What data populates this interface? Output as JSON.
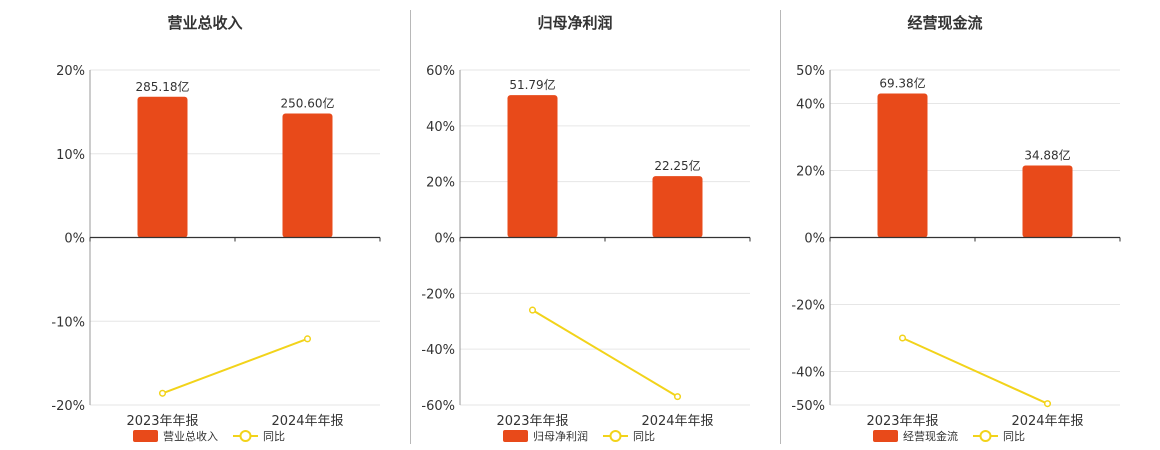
{
  "colors": {
    "bar": "#e84a1a",
    "line": "#f2d31a",
    "axis": "#333333",
    "grid": "#e6e6e6",
    "text": "#333333"
  },
  "chart_data": [
    {
      "type": "bar",
      "title": "营业总收入",
      "categories": [
        "2023年年报",
        "2024年年报"
      ],
      "series": [
        {
          "name": "营业总收入",
          "type": "bar",
          "values": [
            16.8,
            14.8
          ],
          "labels": [
            "285.18亿",
            "250.60亿"
          ]
        },
        {
          "name": "同比",
          "type": "line",
          "values": [
            -18.6,
            -12.1
          ]
        }
      ],
      "ylim": [
        -20,
        20
      ],
      "yticks": [
        20,
        10,
        0,
        -10,
        -20
      ],
      "ytick_labels": [
        "20%",
        "10%",
        "0%",
        "-10%",
        "-20%"
      ],
      "xlabel": "",
      "ylabel": "",
      "grid": true,
      "legend_position": "bottom"
    },
    {
      "type": "bar",
      "title": "归母净利润",
      "categories": [
        "2023年年报",
        "2024年年报"
      ],
      "series": [
        {
          "name": "归母净利润",
          "type": "bar",
          "values": [
            51,
            22
          ],
          "labels": [
            "51.79亿",
            "22.25亿"
          ]
        },
        {
          "name": "同比",
          "type": "line",
          "values": [
            -26,
            -57
          ]
        }
      ],
      "ylim": [
        -60,
        60
      ],
      "yticks": [
        60,
        40,
        20,
        0,
        -20,
        -40,
        -60
      ],
      "ytick_labels": [
        "60%",
        "40%",
        "20%",
        "0%",
        "-20%",
        "-40%",
        "-60%"
      ],
      "xlabel": "",
      "ylabel": "",
      "grid": true,
      "legend_position": "bottom"
    },
    {
      "type": "bar",
      "title": "经营现金流",
      "categories": [
        "2023年年报",
        "2024年年报"
      ],
      "series": [
        {
          "name": "经营现金流",
          "type": "bar",
          "values": [
            43,
            21.5
          ],
          "labels": [
            "69.38亿",
            "34.88亿"
          ]
        },
        {
          "name": "同比",
          "type": "line",
          "values": [
            -30,
            -49.6
          ]
        }
      ],
      "ylim": [
        -50,
        50
      ],
      "yticks": [
        50,
        40,
        20,
        0,
        -20,
        -40,
        -50
      ],
      "ytick_labels": [
        "50%",
        "40%",
        "20%",
        "0%",
        "-20%",
        "-40%",
        "-50%"
      ],
      "xlabel": "",
      "ylabel": "",
      "grid": true,
      "legend_position": "bottom"
    }
  ]
}
